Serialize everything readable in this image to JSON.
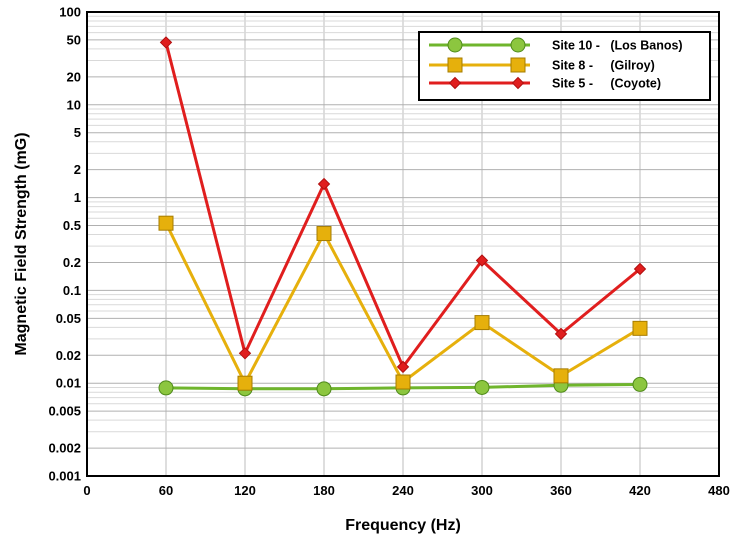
{
  "chart_data": {
    "type": "line",
    "title": "",
    "xlabel": "Frequency (Hz)",
    "ylabel": "Magnetic Field Strength (mG)",
    "x_scale": "linear",
    "y_scale": "log",
    "xlim": [
      0,
      480
    ],
    "ylim": [
      0.001,
      100
    ],
    "x_ticks": [
      0,
      60,
      120,
      180,
      240,
      300,
      360,
      420,
      480
    ],
    "y_ticks": [
      0.001,
      0.002,
      0.005,
      0.01,
      0.02,
      0.05,
      0.1,
      0.2,
      0.5,
      1,
      2,
      5,
      10,
      20,
      50,
      100
    ],
    "y_tick_labels": [
      "0.001",
      "0.002",
      "0.005",
      "0.01",
      "0.02",
      "0.05",
      "0.1",
      "0.2",
      "0.5",
      "1",
      "2",
      "5",
      "10",
      "20",
      "50",
      "100"
    ],
    "grid": true,
    "legend_position": "top-right",
    "x": [
      60,
      120,
      180,
      240,
      300,
      360,
      420
    ],
    "series": [
      {
        "name": "Site 10 -   (Los Banos)",
        "color": "#8cc63f",
        "line_color": "#6fb52c",
        "marker": "circle",
        "values": [
          0.0089,
          0.0087,
          0.0087,
          0.0089,
          0.009,
          0.0095,
          0.0097
        ]
      },
      {
        "name": "Site 8 -     (Gilroy)",
        "color": "#e6b00c",
        "line_color": "#e6b00c",
        "marker": "square",
        "values": [
          0.53,
          0.01,
          0.41,
          0.0103,
          0.045,
          0.012,
          0.039
        ]
      },
      {
        "name": "Site 5 -     (Coyote)",
        "color": "#e01e1e",
        "line_color": "#e01e1e",
        "marker": "diamond",
        "values": [
          47,
          0.021,
          1.4,
          0.015,
          0.21,
          0.034,
          0.17
        ]
      }
    ]
  }
}
